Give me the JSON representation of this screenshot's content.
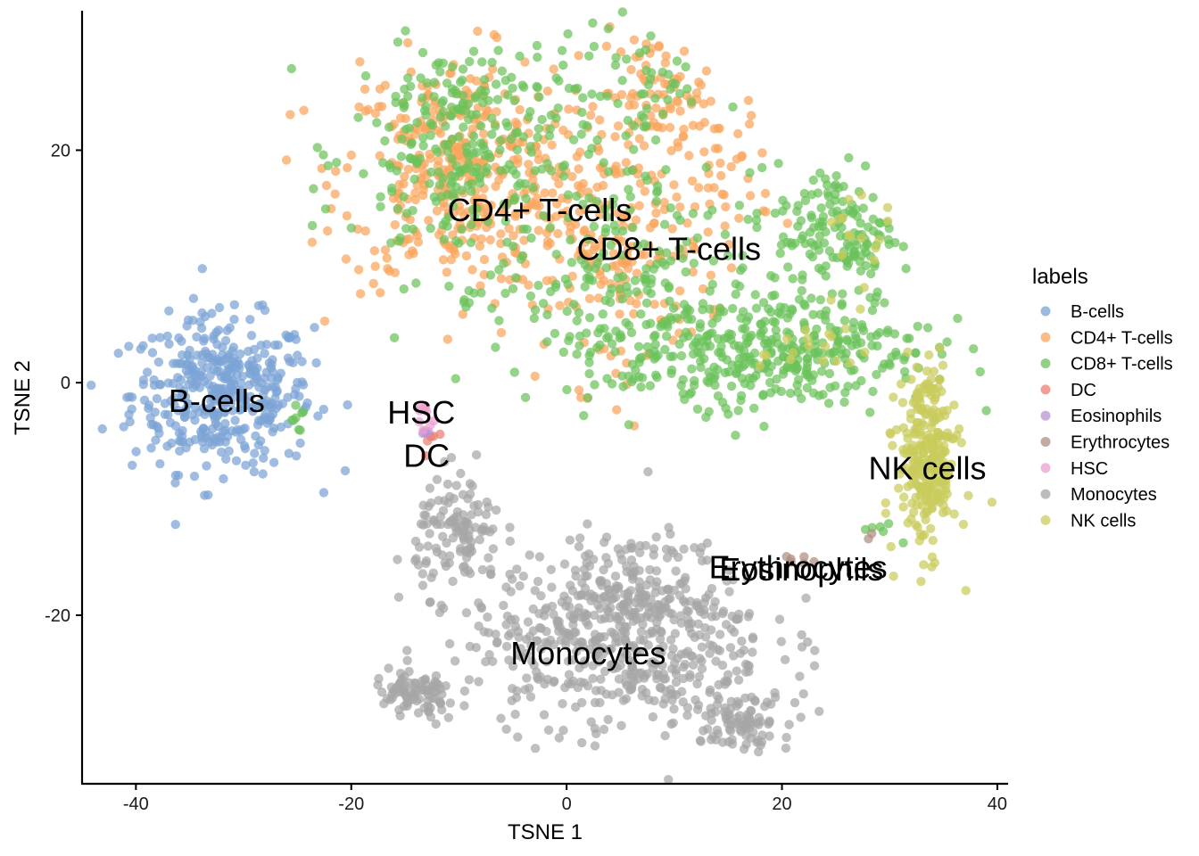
{
  "chart_data": {
    "type": "scatter",
    "xlabel": "TSNE 1",
    "ylabel": "TSNE 2",
    "xlim": [
      -45,
      41
    ],
    "ylim": [
      -34.5,
      32
    ],
    "xticks": [
      -40,
      -20,
      0,
      20,
      40
    ],
    "yticks": [
      -20,
      0,
      20
    ],
    "legend": {
      "title": "labels",
      "placement": "right"
    },
    "grid": false,
    "series": [
      {
        "name": "B-cells",
        "color": "#7BA3D6",
        "clusters": [
          {
            "cx": -32,
            "cy": -1,
            "sx": 4.2,
            "sy": 3.3,
            "n": 420
          }
        ]
      },
      {
        "name": "CD4+ T-cells",
        "color": "#F9A55C",
        "clusters": [
          {
            "cx": -10,
            "cy": 18,
            "sx": 5.5,
            "sy": 5.0,
            "n": 380
          },
          {
            "cx": 4,
            "cy": 12,
            "sx": 4.5,
            "sy": 6.0,
            "n": 200
          },
          {
            "cx": 8,
            "cy": 25,
            "sx": 2.5,
            "sy": 2.5,
            "n": 60
          },
          {
            "cx": 14,
            "cy": 18,
            "sx": 2.5,
            "sy": 4,
            "n": 60
          }
        ]
      },
      {
        "name": "CD8+ T-cells",
        "color": "#6BC25A",
        "clusters": [
          {
            "cx": -9,
            "cy": 20,
            "sx": 5.5,
            "sy": 5.5,
            "n": 300
          },
          {
            "cx": 5,
            "cy": 8,
            "sx": 6,
            "sy": 5,
            "n": 200
          },
          {
            "cx": 25,
            "cy": 13,
            "sx": 2.8,
            "sy": 3,
            "n": 150
          },
          {
            "cx": 22,
            "cy": 3,
            "sx": 6,
            "sy": 2.5,
            "n": 250
          },
          {
            "cx": 12,
            "cy": 2,
            "sx": 5,
            "sy": 2,
            "n": 100
          },
          {
            "cx": 7,
            "cy": 25,
            "sx": 3,
            "sy": 3,
            "n": 50
          },
          {
            "cx": -25,
            "cy": -3,
            "sx": 0.3,
            "sy": 1,
            "n": 8
          },
          {
            "cx": 29,
            "cy": -12.5,
            "sx": 1,
            "sy": 0.5,
            "n": 6
          }
        ]
      },
      {
        "name": "DC",
        "color": "#EC7D73",
        "clusters": [
          {
            "cx": -13,
            "cy": -4.8,
            "sx": 0.5,
            "sy": 0.5,
            "n": 5
          }
        ]
      },
      {
        "name": "Eosinophils",
        "color": "#B993D3",
        "clusters": [
          {
            "cx": -13.2,
            "cy": -4.5,
            "sx": 0.4,
            "sy": 0.4,
            "n": 5
          }
        ]
      },
      {
        "name": "Erythrocytes",
        "color": "#B08E81",
        "clusters": [
          {
            "cx": 21,
            "cy": -15.2,
            "sx": 0.6,
            "sy": 0.2,
            "n": 6
          },
          {
            "cx": 28,
            "cy": -13,
            "sx": 0.2,
            "sy": 0.2,
            "n": 2
          }
        ]
      },
      {
        "name": "HSC",
        "color": "#EC9FD1",
        "clusters": [
          {
            "cx": -13.5,
            "cy": -3,
            "sx": 0.6,
            "sy": 0.8,
            "n": 8
          }
        ]
      },
      {
        "name": "Monocytes",
        "color": "#A6A6A6",
        "clusters": [
          {
            "cx": 5,
            "cy": -22,
            "sx": 7,
            "sy": 4,
            "n": 520
          },
          {
            "cx": -10,
            "cy": -13,
            "sx": 2.0,
            "sy": 2.5,
            "n": 120
          },
          {
            "cx": -14,
            "cy": -27,
            "sx": 2.0,
            "sy": 1.2,
            "n": 90
          },
          {
            "cx": 16,
            "cy": -29,
            "sx": 2.5,
            "sy": 1.2,
            "n": 90
          },
          {
            "cx": 6,
            "cy": -18,
            "sx": 3,
            "sy": 2,
            "n": 100
          }
        ]
      },
      {
        "name": "NK cells",
        "color": "#C9CC5B",
        "clusters": [
          {
            "cx": 33.5,
            "cy": -7,
            "sx": 1.4,
            "sy": 3.6,
            "n": 260
          },
          {
            "cx": 33.5,
            "cy": -0.5,
            "sx": 0.6,
            "sy": 1,
            "n": 18
          },
          {
            "cx": 24,
            "cy": 3,
            "sx": 3,
            "sy": 1.5,
            "n": 20
          },
          {
            "cx": 27,
            "cy": 13,
            "sx": 1.5,
            "sy": 2,
            "n": 15
          }
        ]
      }
    ],
    "annotations": [
      {
        "text": "CD4+ T-cells",
        "x": -2.5,
        "y": 14.8
      },
      {
        "text": "CD8+ T-cells",
        "x": 9.5,
        "y": 11.5
      },
      {
        "text": "B-cells",
        "x": -32.5,
        "y": -1.6
      },
      {
        "text": "HSC",
        "x": -13.5,
        "y": -2.6
      },
      {
        "text": "DC",
        "x": -13,
        "y": -6.3
      },
      {
        "text": "NK cells",
        "x": 33.5,
        "y": -7.4
      },
      {
        "text": "Erythrocytes",
        "x": 21.5,
        "y": -15.9
      },
      {
        "text": "Eosinophils",
        "x": 21.8,
        "y": -16.1
      },
      {
        "text": "Monocytes",
        "x": 2,
        "y": -23.3
      }
    ]
  }
}
